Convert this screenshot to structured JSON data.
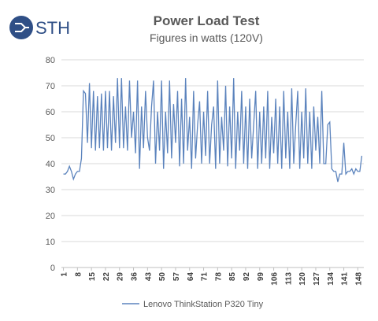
{
  "logo": "STH",
  "chart_data": {
    "type": "line",
    "title": "Power Load Test",
    "subtitle": "Figures in watts (120V)",
    "x": [
      1,
      2,
      3,
      4,
      5,
      6,
      7,
      8,
      9,
      10,
      11,
      12,
      13,
      14,
      15,
      16,
      17,
      18,
      19,
      20,
      21,
      22,
      23,
      24,
      25,
      26,
      27,
      28,
      29,
      30,
      31,
      32,
      33,
      34,
      35,
      36,
      37,
      38,
      39,
      40,
      41,
      42,
      43,
      44,
      45,
      46,
      47,
      48,
      49,
      50,
      51,
      52,
      53,
      54,
      55,
      56,
      57,
      58,
      59,
      60,
      61,
      62,
      63,
      64,
      65,
      66,
      67,
      68,
      69,
      70,
      71,
      72,
      73,
      74,
      75,
      76,
      77,
      78,
      79,
      80,
      81,
      82,
      83,
      84,
      85,
      86,
      87,
      88,
      89,
      90,
      91,
      92,
      93,
      94,
      95,
      96,
      97,
      98,
      99,
      100,
      101,
      102,
      103,
      104,
      105,
      106,
      107,
      108,
      109,
      110,
      111,
      112,
      113,
      114,
      115,
      116,
      117,
      118,
      119,
      120,
      121,
      122,
      123,
      124,
      125,
      126,
      127,
      128,
      129,
      130,
      131,
      132,
      133,
      134,
      135,
      136,
      137,
      138,
      139,
      140,
      141,
      142,
      143,
      144,
      145,
      146,
      147,
      148,
      149,
      150
    ],
    "series": [
      {
        "name": "Lenovo ThinkStation P320 Tiny",
        "color": "#5b83bd",
        "values": [
          36,
          36,
          37,
          39,
          37,
          34,
          36,
          37,
          37,
          42,
          68,
          67,
          48,
          71,
          46,
          68,
          45,
          66,
          46,
          67,
          45,
          68,
          46,
          68,
          45,
          66,
          48,
          73,
          46,
          73,
          46,
          62,
          45,
          72,
          50,
          60,
          44,
          72,
          38,
          62,
          46,
          68,
          50,
          45,
          62,
          72,
          40,
          60,
          45,
          72,
          38,
          60,
          44,
          72,
          42,
          63,
          48,
          68,
          39,
          65,
          40,
          73,
          45,
          58,
          38,
          68,
          42,
          55,
          64,
          40,
          60,
          43,
          68,
          40,
          55,
          62,
          38,
          72,
          40,
          58,
          45,
          70,
          39,
          62,
          42,
          73,
          38,
          60,
          45,
          68,
          40,
          62,
          38,
          65,
          42,
          55,
          68,
          38,
          60,
          40,
          62,
          42,
          68,
          38,
          58,
          44,
          65,
          40,
          62,
          38,
          68,
          42,
          60,
          38,
          69,
          40,
          55,
          68,
          38,
          60,
          42,
          69,
          40,
          60,
          38,
          62,
          45,
          58,
          40,
          68,
          40,
          40,
          55,
          56,
          38,
          37,
          37,
          33,
          36,
          36,
          48,
          36,
          37,
          37,
          38,
          36,
          38,
          37,
          37,
          43
        ]
      }
    ],
    "xlim": [
      0,
      151
    ],
    "xticks": [
      1,
      8,
      15,
      22,
      29,
      36,
      43,
      50,
      57,
      64,
      71,
      78,
      85,
      92,
      99,
      106,
      113,
      120,
      127,
      134,
      141,
      148
    ],
    "ylim": [
      0,
      80
    ],
    "yticks": [
      0,
      10,
      20,
      30,
      40,
      50,
      60,
      70,
      80
    ],
    "grid": true,
    "legend": "bottom"
  }
}
